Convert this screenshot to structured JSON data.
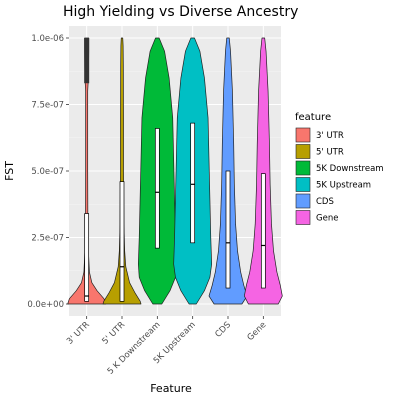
{
  "chart_data": {
    "type": "violin",
    "title": "High Yielding vs Diverse Ancestry",
    "xlabel": "Feature",
    "ylabel": "FST",
    "ylim": [
      0,
      1e-06
    ],
    "y_ticks": [
      0,
      2.5e-07,
      5e-07,
      7.5e-07,
      1e-06
    ],
    "y_tick_labels": [
      "0.0e+00",
      "2.5e-07",
      "5.0e-07",
      "7.5e-07",
      "1.0e-06"
    ],
    "categories": [
      "3' UTR",
      "5' UTR",
      "5 K Downstream",
      "5K Upstream",
      "CDS",
      "Gene"
    ],
    "legend": {
      "title": "feature",
      "placement": "right",
      "entries": [
        "3' UTR",
        "5' UTR",
        "5K Downstream",
        "5K Upstream",
        "CDS",
        "Gene"
      ]
    },
    "grid": true,
    "background": "#ebebeb",
    "series": [
      {
        "name": "3' UTR",
        "color": "#F8766D",
        "q1": 1e-08,
        "median": 3e-08,
        "q3": 3.4e-07,
        "density": [
          [
            0,
            0.55
          ],
          [
            2e-08,
            0.5
          ],
          [
            5e-08,
            0.3
          ],
          [
            8e-08,
            0.15
          ],
          [
            1.2e-07,
            0.08
          ],
          [
            2e-07,
            0.05
          ],
          [
            3e-07,
            0.035
          ],
          [
            5e-07,
            0.03
          ],
          [
            7e-07,
            0.03
          ],
          [
            8e-07,
            0.03
          ],
          [
            8.5e-07,
            0.05
          ],
          [
            9.5e-07,
            0.06
          ],
          [
            1e-06,
            0.06
          ]
        ]
      },
      {
        "name": "5' UTR",
        "color": "#B79F00",
        "q1": 1e-08,
        "median": 1.4e-07,
        "q3": 4.6e-07,
        "density": [
          [
            0,
            0.5
          ],
          [
            1e-08,
            0.48
          ],
          [
            4e-08,
            0.35
          ],
          [
            8e-08,
            0.2
          ],
          [
            1.4e-07,
            0.1
          ],
          [
            2e-07,
            0.07
          ],
          [
            3e-07,
            0.05
          ],
          [
            5e-07,
            0.04
          ],
          [
            7e-07,
            0.04
          ],
          [
            9e-07,
            0.035
          ],
          [
            9.7e-07,
            0.03
          ],
          [
            1e-06,
            0.02
          ]
        ]
      },
      {
        "name": "5K Downstream",
        "color": "#00BA38",
        "q1": 2.1e-07,
        "median": 4.2e-07,
        "q3": 6.6e-07,
        "density": [
          [
            0,
            0.05
          ],
          [
            5e-08,
            0.14
          ],
          [
            1e-07,
            0.2
          ],
          [
            1.5e-07,
            0.21
          ],
          [
            2.5e-07,
            0.2
          ],
          [
            4e-07,
            0.19
          ],
          [
            5.5e-07,
            0.18
          ],
          [
            7e-07,
            0.17
          ],
          [
            8.5e-07,
            0.13
          ],
          [
            9.5e-07,
            0.08
          ],
          [
            1e-06,
            0.02
          ]
        ]
      },
      {
        "name": "5K Upstream",
        "color": "#00BFC4",
        "q1": 2.3e-07,
        "median": 4.5e-07,
        "q3": 6.8e-07,
        "density": [
          [
            0,
            0.04
          ],
          [
            5e-08,
            0.13
          ],
          [
            1e-07,
            0.19
          ],
          [
            1.5e-07,
            0.21
          ],
          [
            2.5e-07,
            0.2
          ],
          [
            4e-07,
            0.19
          ],
          [
            5.5e-07,
            0.18
          ],
          [
            7e-07,
            0.17
          ],
          [
            8.5e-07,
            0.13
          ],
          [
            9.5e-07,
            0.08
          ],
          [
            1e-06,
            0.02
          ]
        ]
      },
      {
        "name": "CDS",
        "color": "#619CFF",
        "q1": 6e-08,
        "median": 2.3e-07,
        "q3": 5e-07,
        "density": [
          [
            0,
            0.22
          ],
          [
            3e-08,
            0.3
          ],
          [
            7e-08,
            0.25
          ],
          [
            1.2e-07,
            0.2
          ],
          [
            2e-07,
            0.15
          ],
          [
            3e-07,
            0.12
          ],
          [
            4.5e-07,
            0.1
          ],
          [
            6e-07,
            0.09
          ],
          [
            8e-07,
            0.07
          ],
          [
            9.5e-07,
            0.04
          ],
          [
            1e-06,
            0.02
          ]
        ]
      },
      {
        "name": "Gene",
        "color": "#F564E3",
        "q1": 6e-08,
        "median": 2.2e-07,
        "q3": 4.9e-07,
        "density": [
          [
            0,
            0.22
          ],
          [
            3e-08,
            0.28
          ],
          [
            7e-08,
            0.25
          ],
          [
            1.2e-07,
            0.2
          ],
          [
            2e-07,
            0.15
          ],
          [
            3e-07,
            0.12
          ],
          [
            4.5e-07,
            0.1
          ],
          [
            6e-07,
            0.09
          ],
          [
            8e-07,
            0.07
          ],
          [
            9.5e-07,
            0.04
          ],
          [
            1e-06,
            0.02
          ]
        ]
      }
    ]
  }
}
